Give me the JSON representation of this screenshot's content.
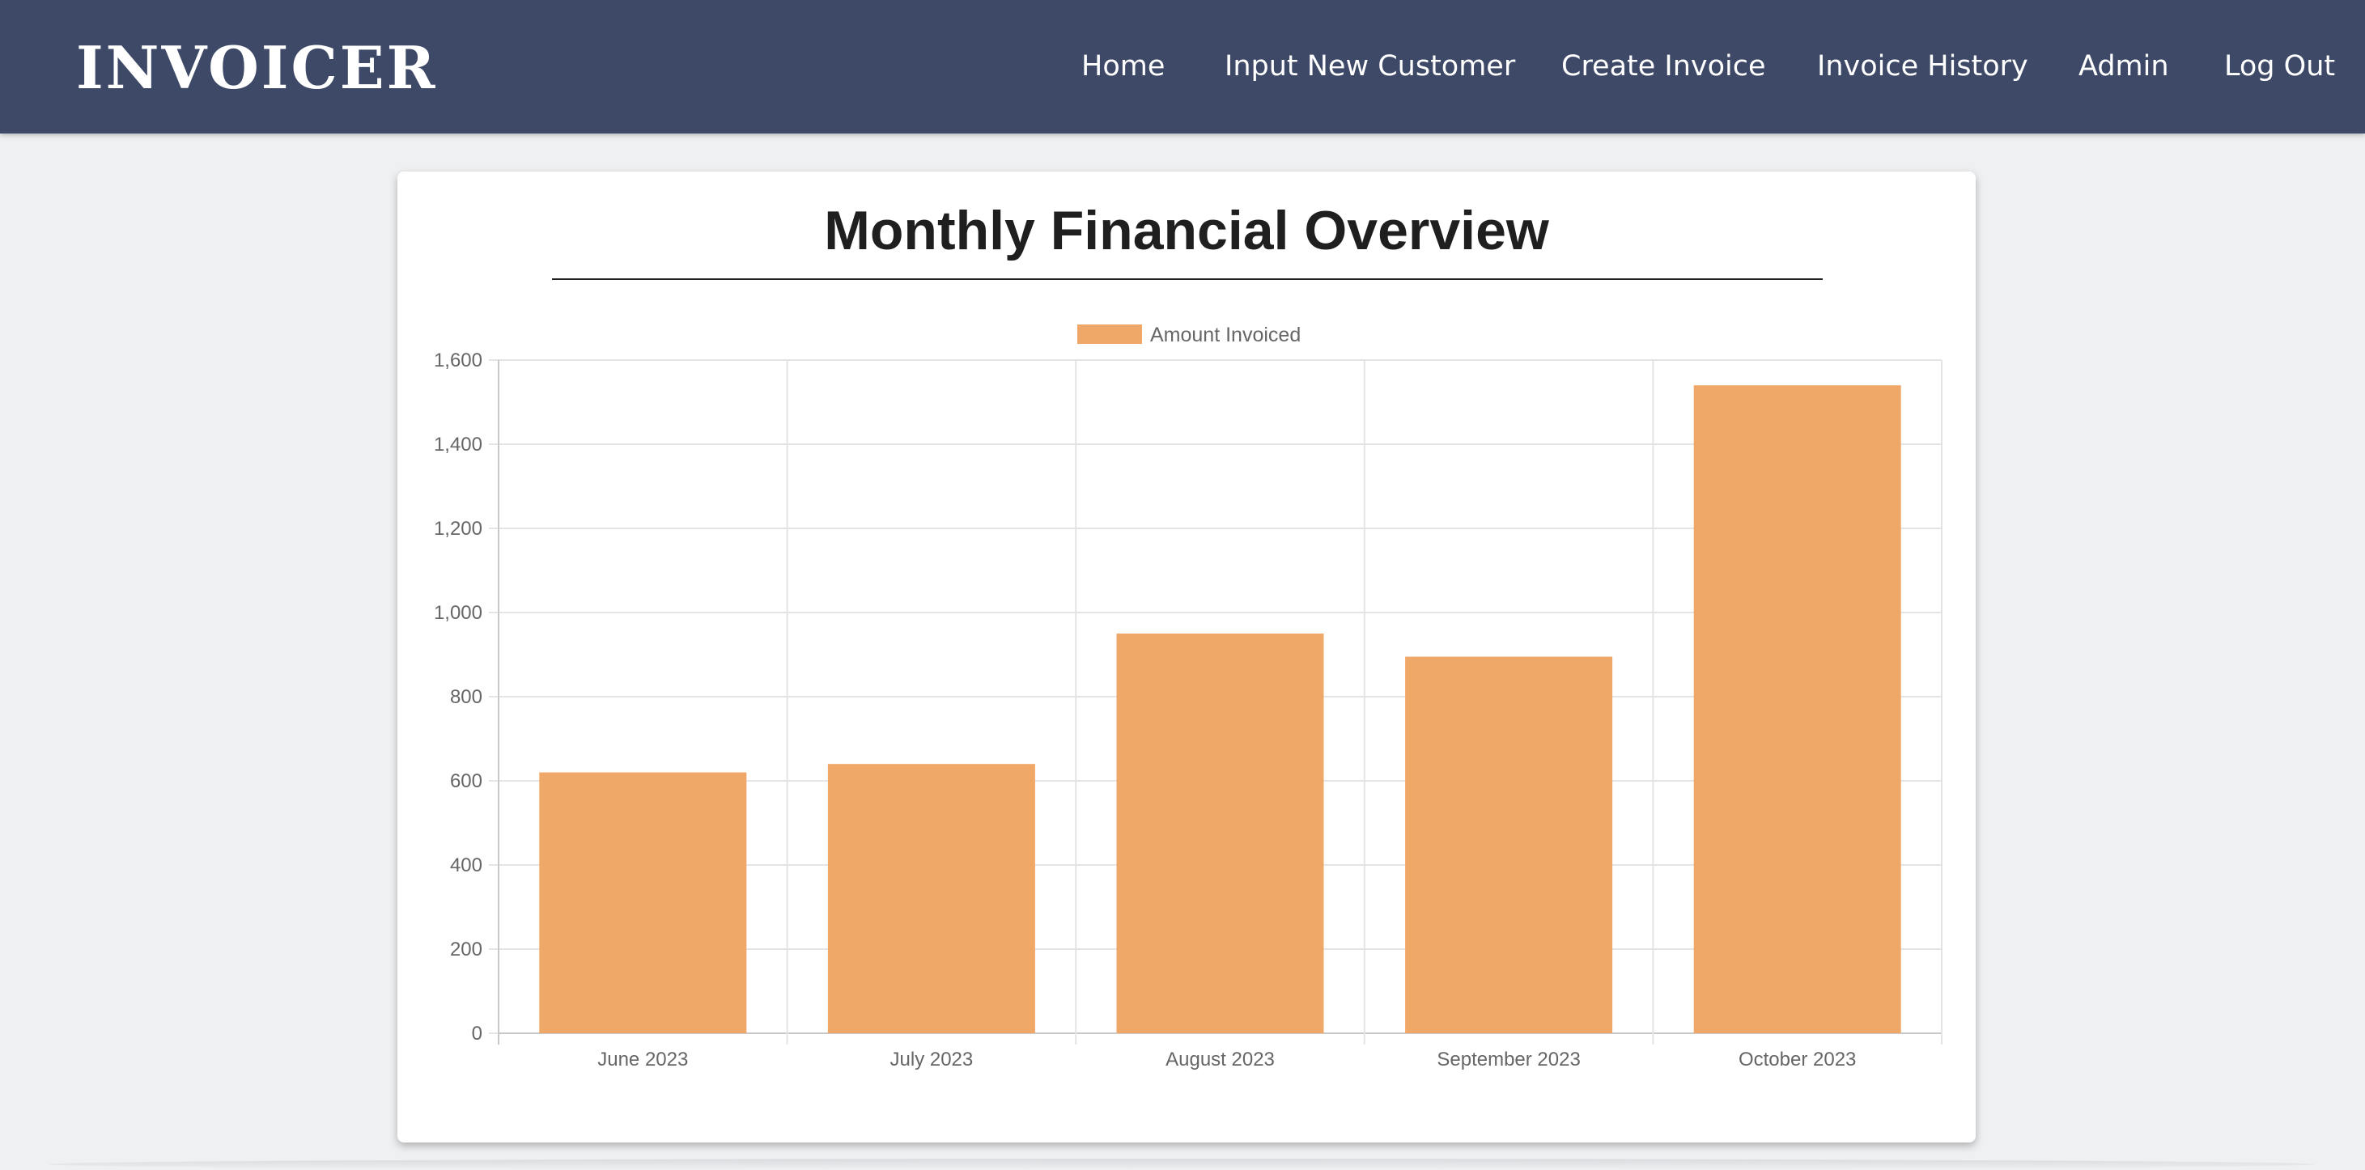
{
  "app": {
    "logo": "INVOICER"
  },
  "nav": {
    "home": "Home",
    "input_customer": "Input New Customer",
    "create_invoice": "Create Invoice",
    "invoice_history": "Invoice History",
    "admin": "Admin",
    "logout": "Log Out"
  },
  "card": {
    "title": "Monthly Financial Overview"
  },
  "colors": {
    "navbar": "#3d4966",
    "bar": "#f0a868",
    "background": "#eef0f2"
  },
  "chart_data": {
    "type": "bar",
    "title": "",
    "xlabel": "",
    "ylabel": "",
    "categories": [
      "June 2023",
      "July 2023",
      "August 2023",
      "September 2023",
      "October 2023"
    ],
    "series": [
      {
        "name": "Amount Invoiced",
        "values": [
          620,
          640,
          950,
          895,
          1540
        ]
      }
    ],
    "ylim": [
      0,
      1600
    ],
    "yticks": [
      0,
      200,
      400,
      600,
      800,
      1000,
      1200,
      1400,
      1600
    ],
    "ytick_labels": [
      "0",
      "200",
      "400",
      "600",
      "800",
      "1,000",
      "1,200",
      "1,400",
      "1,600"
    ],
    "grid": true,
    "legend_position": "top-center"
  }
}
